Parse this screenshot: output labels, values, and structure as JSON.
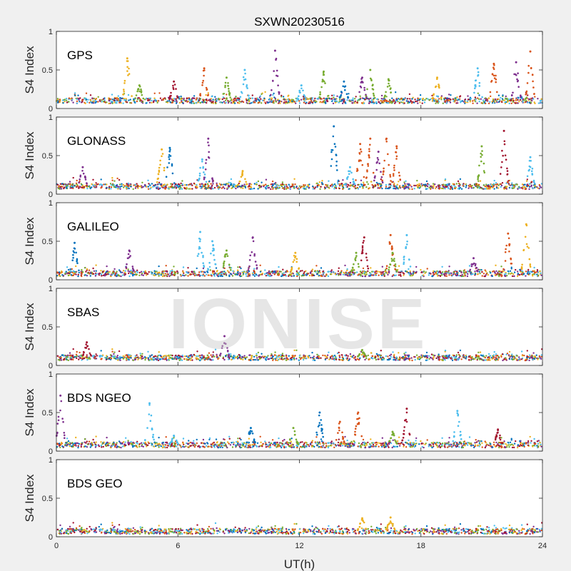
{
  "chart_data": {
    "type": "scatter",
    "title": "SXWN20230516",
    "xlabel": "UT(h)",
    "ylabel": "S4 Index",
    "xlim": [
      0,
      24
    ],
    "ylim": [
      0,
      1
    ],
    "xticks": [
      0,
      6,
      12,
      18,
      24
    ],
    "yticks": [
      0,
      0.5,
      1
    ],
    "xtick_labels": [
      "0",
      "6",
      "12",
      "18",
      "24"
    ],
    "ytick_labels": [
      "0",
      "0.5",
      "1"
    ],
    "grid": false,
    "watermark": "IONISE",
    "series_colors": [
      "#0072bd",
      "#d95319",
      "#edb120",
      "#7e2f8e",
      "#77ac30",
      "#4dbeee",
      "#a2142f"
    ],
    "panels": [
      {
        "name": "GPS",
        "baseline": 0.1,
        "peaks": [
          {
            "x": 3.5,
            "y": 0.65,
            "c": 2
          },
          {
            "x": 4.1,
            "y": 0.3,
            "c": 4
          },
          {
            "x": 5.8,
            "y": 0.35,
            "c": 6
          },
          {
            "x": 7.3,
            "y": 0.52,
            "c": 1
          },
          {
            "x": 8.4,
            "y": 0.4,
            "c": 4
          },
          {
            "x": 9.3,
            "y": 0.5,
            "c": 5
          },
          {
            "x": 10.8,
            "y": 0.75,
            "c": 3
          },
          {
            "x": 12.1,
            "y": 0.3,
            "c": 5
          },
          {
            "x": 13.2,
            "y": 0.48,
            "c": 4
          },
          {
            "x": 14.2,
            "y": 0.35,
            "c": 0
          },
          {
            "x": 15.1,
            "y": 0.4,
            "c": 3
          },
          {
            "x": 15.5,
            "y": 0.5,
            "c": 4
          },
          {
            "x": 16.4,
            "y": 0.38,
            "c": 4
          },
          {
            "x": 18.8,
            "y": 0.4,
            "c": 2
          },
          {
            "x": 20.8,
            "y": 0.52,
            "c": 5
          },
          {
            "x": 21.6,
            "y": 0.58,
            "c": 1
          },
          {
            "x": 22.7,
            "y": 0.6,
            "c": 3
          },
          {
            "x": 23.4,
            "y": 0.74,
            "c": 1
          }
        ]
      },
      {
        "name": "GLONASS",
        "baseline": 0.1,
        "peaks": [
          {
            "x": 1.3,
            "y": 0.35,
            "c": 3
          },
          {
            "x": 5.2,
            "y": 0.58,
            "c": 2
          },
          {
            "x": 5.6,
            "y": 0.6,
            "c": 0
          },
          {
            "x": 7.2,
            "y": 0.45,
            "c": 5
          },
          {
            "x": 7.5,
            "y": 0.72,
            "c": 3
          },
          {
            "x": 9.2,
            "y": 0.3,
            "c": 2
          },
          {
            "x": 13.7,
            "y": 0.88,
            "c": 0
          },
          {
            "x": 14.5,
            "y": 0.35,
            "c": 5
          },
          {
            "x": 15.0,
            "y": 0.65,
            "c": 1
          },
          {
            "x": 15.5,
            "y": 0.72,
            "c": 1
          },
          {
            "x": 15.9,
            "y": 0.55,
            "c": 3
          },
          {
            "x": 16.3,
            "y": 0.72,
            "c": 1
          },
          {
            "x": 16.8,
            "y": 0.62,
            "c": 1
          },
          {
            "x": 21.0,
            "y": 0.62,
            "c": 4
          },
          {
            "x": 22.1,
            "y": 0.82,
            "c": 6
          },
          {
            "x": 23.4,
            "y": 0.48,
            "c": 5
          }
        ]
      },
      {
        "name": "GALILEO",
        "baseline": 0.08,
        "peaks": [
          {
            "x": 0.9,
            "y": 0.48,
            "c": 0
          },
          {
            "x": 3.6,
            "y": 0.38,
            "c": 3
          },
          {
            "x": 7.1,
            "y": 0.62,
            "c": 5
          },
          {
            "x": 7.7,
            "y": 0.5,
            "c": 5
          },
          {
            "x": 8.4,
            "y": 0.38,
            "c": 4
          },
          {
            "x": 9.7,
            "y": 0.55,
            "c": 3
          },
          {
            "x": 11.8,
            "y": 0.35,
            "c": 2
          },
          {
            "x": 14.8,
            "y": 0.35,
            "c": 4
          },
          {
            "x": 15.2,
            "y": 0.55,
            "c": 6
          },
          {
            "x": 16.5,
            "y": 0.58,
            "c": 1
          },
          {
            "x": 16.6,
            "y": 0.35,
            "c": 4
          },
          {
            "x": 17.3,
            "y": 0.58,
            "c": 5
          },
          {
            "x": 20.6,
            "y": 0.28,
            "c": 3
          },
          {
            "x": 22.3,
            "y": 0.6,
            "c": 1
          },
          {
            "x": 23.2,
            "y": 0.72,
            "c": 2
          }
        ]
      },
      {
        "name": "SBAS",
        "baseline": 0.1,
        "peaks": [
          {
            "x": 1.5,
            "y": 0.3,
            "c": 6
          },
          {
            "x": 8.3,
            "y": 0.38,
            "c": 3
          },
          {
            "x": 15.1,
            "y": 0.2,
            "c": 4
          }
        ]
      },
      {
        "name": "BDS NGEO",
        "baseline": 0.08,
        "peaks": [
          {
            "x": 0.2,
            "y": 0.72,
            "c": 3
          },
          {
            "x": 4.6,
            "y": 0.62,
            "c": 5
          },
          {
            "x": 5.8,
            "y": 0.2,
            "c": 5
          },
          {
            "x": 9.6,
            "y": 0.3,
            "c": 0
          },
          {
            "x": 11.7,
            "y": 0.3,
            "c": 4
          },
          {
            "x": 13.0,
            "y": 0.5,
            "c": 0
          },
          {
            "x": 14.0,
            "y": 0.38,
            "c": 1
          },
          {
            "x": 14.9,
            "y": 0.5,
            "c": 1
          },
          {
            "x": 16.6,
            "y": 0.25,
            "c": 4
          },
          {
            "x": 17.3,
            "y": 0.55,
            "c": 6
          },
          {
            "x": 19.8,
            "y": 0.52,
            "c": 5
          },
          {
            "x": 21.8,
            "y": 0.28,
            "c": 6
          }
        ]
      },
      {
        "name": "BDS GEO",
        "baseline": 0.07,
        "peaks": [
          {
            "x": 15.1,
            "y": 0.24,
            "c": 2
          },
          {
            "x": 16.5,
            "y": 0.25,
            "c": 2
          }
        ]
      }
    ]
  }
}
